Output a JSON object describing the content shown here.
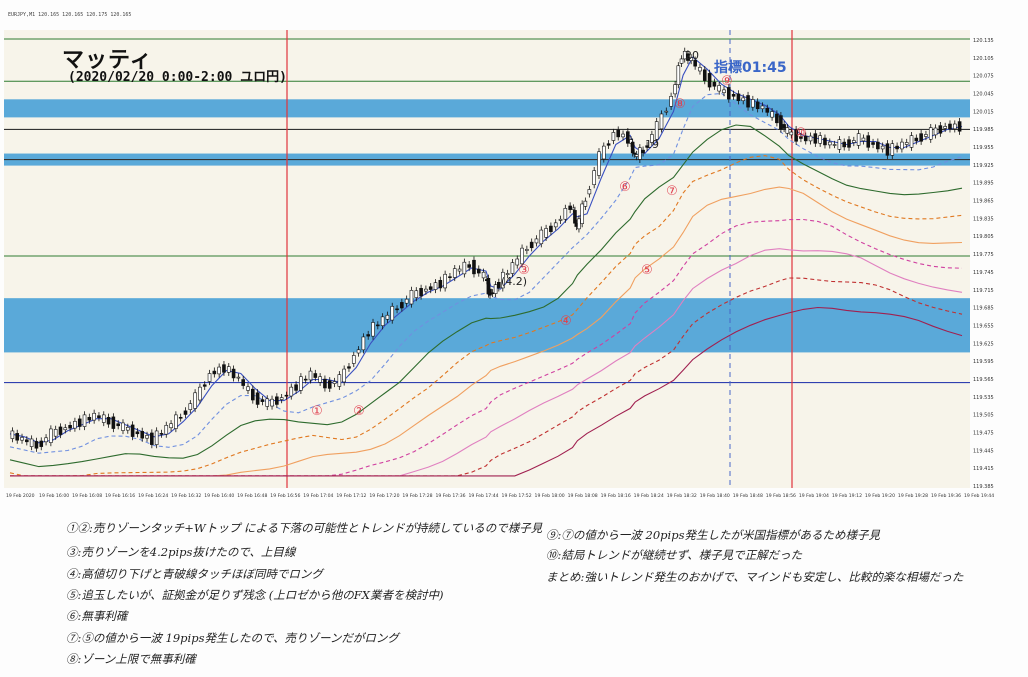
{
  "header": {
    "symbol_line": "EURJPY,M1 120.165 120.165 120.175 120.165",
    "title": "マッティ",
    "subtitle": "(2020/02/20 0:00-2:00 ユロ円)",
    "highlight_label": "指標01:45"
  },
  "chart_data": {
    "type": "candlestick",
    "symbol": "EURJPY,M1",
    "y_ticks": [
      "120.135",
      "120.105",
      "120.075",
      "120.045",
      "120.015",
      "119.985",
      "119.955",
      "119.925",
      "119.895",
      "119.865",
      "119.835",
      "119.805",
      "119.775",
      "119.745",
      "119.715",
      "119.685",
      "119.655",
      "119.625",
      "119.595",
      "119.565",
      "119.535",
      "119.505",
      "119.475",
      "119.445",
      "119.415",
      "119.385"
    ],
    "x_ticks": [
      "19 Feb 2020",
      "19 Feb 16:00",
      "19 Feb 16:08",
      "19 Feb 16:16",
      "19 Feb 16:24",
      "19 Feb 16:32",
      "19 Feb 16:40",
      "19 Feb 16:48",
      "19 Feb 16:56",
      "19 Feb 17:04",
      "19 Feb 17:12",
      "19 Feb 17:20",
      "19 Feb 17:28",
      "19 Feb 17:36",
      "19 Feb 17:44",
      "19 Feb 17:52",
      "19 Feb 18:00",
      "19 Feb 18:08",
      "19 Feb 18:16",
      "19 Feb 18:24",
      "19 Feb 18:32",
      "19 Feb 18:40",
      "19 Feb 18:48",
      "19 Feb 18:56",
      "19 Feb 19:04",
      "19 Feb 19:12",
      "19 Feb 19:20",
      "19 Feb 19:28",
      "19 Feb 19:36",
      "19 Feb 19:44"
    ],
    "ylim": [
      119.38,
      120.14
    ],
    "price_points": [
      [
        0,
        119.47
      ],
      [
        3,
        119.46
      ],
      [
        6,
        119.45
      ],
      [
        9,
        119.47
      ],
      [
        12,
        119.48
      ],
      [
        15,
        119.49
      ],
      [
        18,
        119.5
      ],
      [
        21,
        119.49
      ],
      [
        24,
        119.48
      ],
      [
        27,
        119.47
      ],
      [
        30,
        119.46
      ],
      [
        33,
        119.48
      ],
      [
        36,
        119.5
      ],
      [
        39,
        119.53
      ],
      [
        42,
        119.57
      ],
      [
        45,
        119.58
      ],
      [
        48,
        119.56
      ],
      [
        51,
        119.53
      ],
      [
        54,
        119.52
      ],
      [
        57,
        119.53
      ],
      [
        60,
        119.55
      ],
      [
        63,
        119.57
      ],
      [
        66,
        119.55
      ],
      [
        69,
        119.56
      ],
      [
        72,
        119.6
      ],
      [
        75,
        119.64
      ],
      [
        78,
        119.66
      ],
      [
        81,
        119.68
      ],
      [
        84,
        119.7
      ],
      [
        87,
        119.71
      ],
      [
        90,
        119.72
      ],
      [
        93,
        119.74
      ],
      [
        96,
        119.75
      ],
      [
        99,
        119.73
      ],
      [
        100,
        119.7
      ],
      [
        102,
        119.72
      ],
      [
        105,
        119.75
      ],
      [
        108,
        119.78
      ],
      [
        111,
        119.8
      ],
      [
        114,
        119.82
      ],
      [
        117,
        119.85
      ],
      [
        118,
        119.81
      ],
      [
        120,
        119.86
      ],
      [
        123,
        119.93
      ],
      [
        126,
        119.97
      ],
      [
        129,
        119.96
      ],
      [
        130,
        119.93
      ],
      [
        132,
        119.94
      ],
      [
        135,
        119.98
      ],
      [
        138,
        120.03
      ],
      [
        140,
        120.1
      ],
      [
        142,
        120.09
      ],
      [
        145,
        120.06
      ],
      [
        148,
        120.04
      ],
      [
        151,
        120.03
      ],
      [
        154,
        120.02
      ],
      [
        157,
        120.01
      ],
      [
        160,
        119.99
      ],
      [
        162,
        119.97
      ],
      [
        165,
        119.96
      ],
      [
        168,
        119.96
      ],
      [
        171,
        119.95
      ],
      [
        174,
        119.95
      ],
      [
        177,
        119.96
      ],
      [
        180,
        119.95
      ],
      [
        183,
        119.94
      ],
      [
        186,
        119.95
      ],
      [
        189,
        119.96
      ],
      [
        192,
        119.97
      ],
      [
        195,
        119.98
      ],
      [
        198,
        119.98
      ]
    ],
    "blue_zones": [
      [
        119.995,
        120.025
      ],
      [
        119.915,
        119.935
      ],
      [
        119.605,
        119.695
      ]
    ],
    "horizontal_lines": {
      "green": [
        120.125,
        120.055,
        119.765
      ],
      "dark": [
        119.975,
        119.925
      ],
      "blue_line": [
        119.555
      ]
    },
    "annotations": [
      "①",
      "②",
      "③",
      "④",
      "⑤",
      "⑥",
      "⑦",
      "⑧",
      "⑨",
      "⑩",
      "20",
      "19",
      "(4.2)"
    ]
  },
  "notes": {
    "left": [
      "①②:売りゾーンタッチ+Wトップ による下落の可能性とトレンドが持続しているので様子見",
      "③:売りゾーンを4.2pips抜けたので、上目線",
      "④:高値切り下げと青破線タッチほぼ同時でロング",
      "⑤:追玉したいが、証拠金が足りず残念 (上ロゼから他のFX業者を検討中)",
      "⑥:無事利確",
      "⑦:⑤の値から一波 19pips発生したので、売りゾーンだがロング",
      "⑧:ゾーン上限で無事利確"
    ],
    "right": [
      "⑨:⑦の値から一波 20pips発生したが米国指標があるため様子見",
      "⑩:結局トレンドが継続せず、様子見で正解だった",
      "まとめ:強いトレンド発生のおかげで、マインドも安定し、比較的楽な相場だった"
    ]
  }
}
